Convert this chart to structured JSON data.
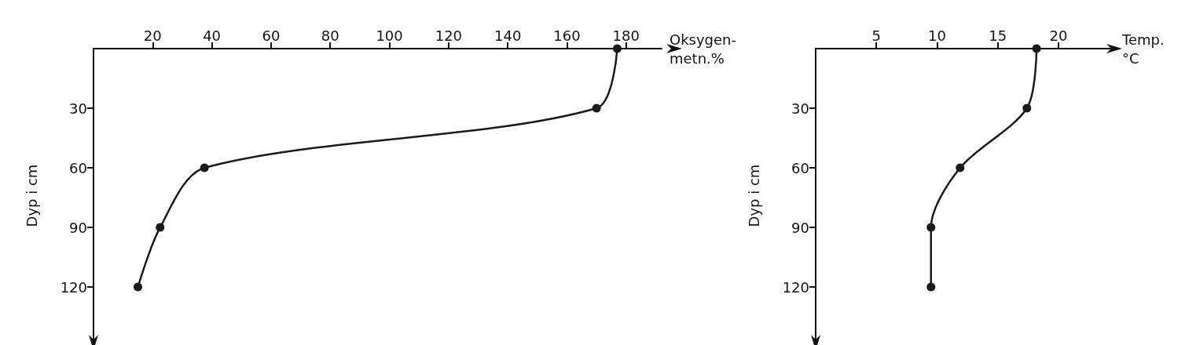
{
  "chart_data": [
    {
      "type": "line",
      "xlabel": "Oksygen-\nmetn.%",
      "ylabel": "Dyp i cm",
      "marker": "circle",
      "line_style": "solid",
      "grid": false,
      "series": [
        {
          "color": "#1a1a1a",
          "x": [
            177,
            170,
            37.5,
            22.5,
            15
          ],
          "values": [
            0,
            30,
            60,
            90,
            120
          ]
        }
      ],
      "xlim": [
        0,
        192
      ],
      "xticks": [
        20,
        40,
        60,
        80,
        100,
        120,
        140,
        160,
        180
      ],
      "ylim": [
        148,
        0
      ],
      "yticks": [
        30,
        60,
        90,
        120
      ]
    },
    {
      "type": "line",
      "xlabel": "Temp.\n°C",
      "ylabel": "Dyp i cm",
      "marker": "circle",
      "line_style": "solid",
      "grid": false,
      "series": [
        {
          "color": "#1a1a1a",
          "x": [
            18.2,
            17.4,
            11.9,
            9.5,
            9.5
          ],
          "values": [
            0,
            30,
            60,
            90,
            120
          ]
        }
      ],
      "xlim": [
        0,
        24.6
      ],
      "xticks": [
        5,
        10,
        15,
        20
      ],
      "ylim": [
        148,
        0
      ],
      "yticks": [
        30,
        60,
        90,
        120
      ]
    }
  ]
}
